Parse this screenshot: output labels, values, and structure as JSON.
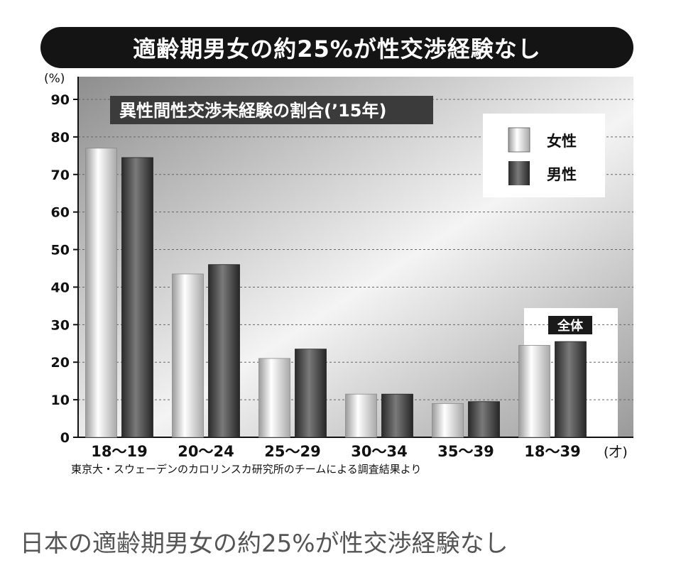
{
  "banner_title": "適齢期男女の約25%が性交渉経験なし",
  "caption": "日本の適齢期男女の約25%が性交渉経験なし",
  "source_note": "東京大・スウェーデンのカロリンスカ研究所のチームによる調査結果より",
  "chart_data": {
    "type": "bar",
    "title": "異性間性交渉未経験の割合(’15年)",
    "ylabel": "(%)",
    "x_unit": "(才)",
    "categories": [
      "18〜19",
      "20〜24",
      "25〜29",
      "30〜34",
      "35〜39",
      "18〜39"
    ],
    "series": [
      {
        "name": "女性",
        "values": [
          77,
          43.5,
          21,
          11.5,
          9,
          24.5
        ]
      },
      {
        "name": "男性",
        "values": [
          74.5,
          46,
          23.5,
          11.5,
          9.5,
          25.5
        ]
      }
    ],
    "ylim": [
      0,
      90
    ],
    "yticks": [
      0,
      10,
      20,
      30,
      40,
      50,
      60,
      70,
      80,
      90
    ],
    "highlight_label": "全体",
    "grid": true,
    "legend": "top-right"
  },
  "colors": {
    "female_bar": "#d9d9d9",
    "male_bar": "#3a3a3a",
    "banner": "#141414",
    "title_box": "#3b3b3b"
  }
}
